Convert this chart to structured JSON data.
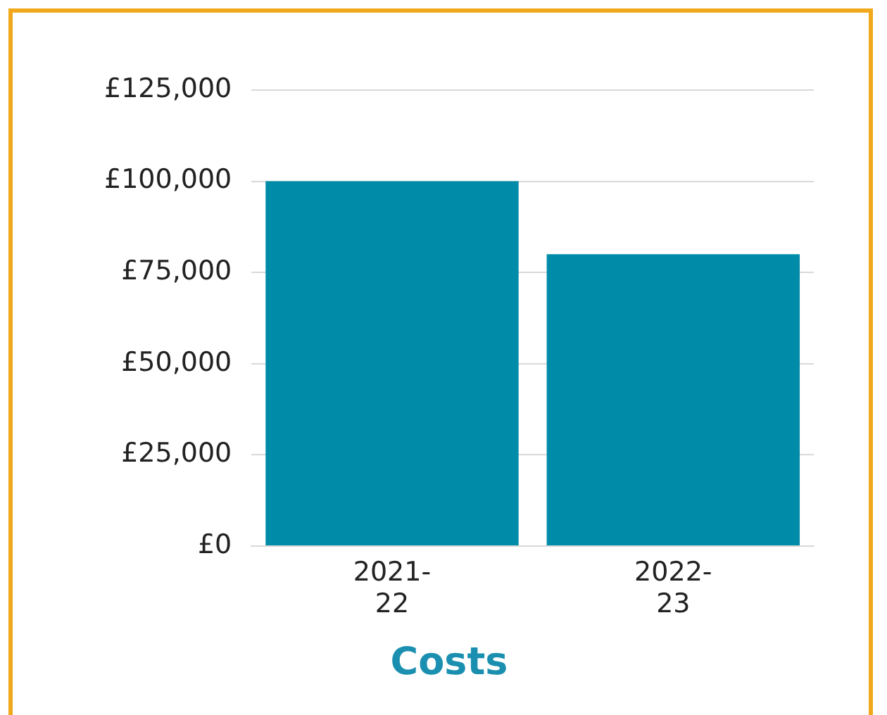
{
  "chart_data": {
    "type": "bar",
    "title": "Costs",
    "categories": [
      "2021-22",
      "2022-23"
    ],
    "values": [
      100000,
      80000
    ],
    "color": "#008ba8",
    "ylim": [
      0,
      125000
    ],
    "yticks": [
      {
        "value": 0,
        "label": "£0"
      },
      {
        "value": 25000,
        "label": "£25,000"
      },
      {
        "value": 50000,
        "label": "£50,000"
      },
      {
        "value": 75000,
        "label": "£75,000"
      },
      {
        "value": 100000,
        "label": "£100,000"
      },
      {
        "value": 125000,
        "label": "£125,000"
      }
    ],
    "grid": "y",
    "legend": false
  }
}
